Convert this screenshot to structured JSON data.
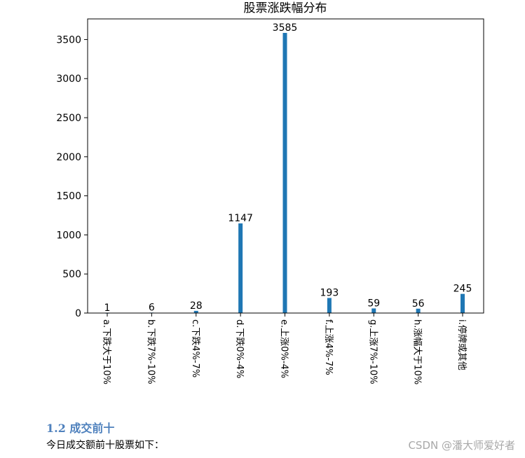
{
  "chart_data": {
    "type": "bar",
    "title": "股票涨跌幅分布",
    "categories": [
      "a.下跌大于10%",
      "b.下跌7%-10%",
      "c.下跌4%-7%",
      "d.下跌0%-4%",
      "e.上涨0%-4%",
      "f.上涨4%-7%",
      "g.上涨7%-10%",
      "h.涨幅大于10%",
      "i.停牌或其他"
    ],
    "values": [
      1,
      6,
      28,
      1147,
      3585,
      193,
      59,
      56,
      245
    ],
    "yticks": [
      0,
      500,
      1000,
      1500,
      2000,
      2500,
      3000,
      3500
    ],
    "ylim": [
      0,
      3764
    ],
    "color": "#1f77b4",
    "grid": false
  },
  "article": {
    "heading": "1.2 成交前十",
    "paragraph": "今日成交额前十股票如下："
  },
  "watermark": "CSDN @潘大师爱好者"
}
